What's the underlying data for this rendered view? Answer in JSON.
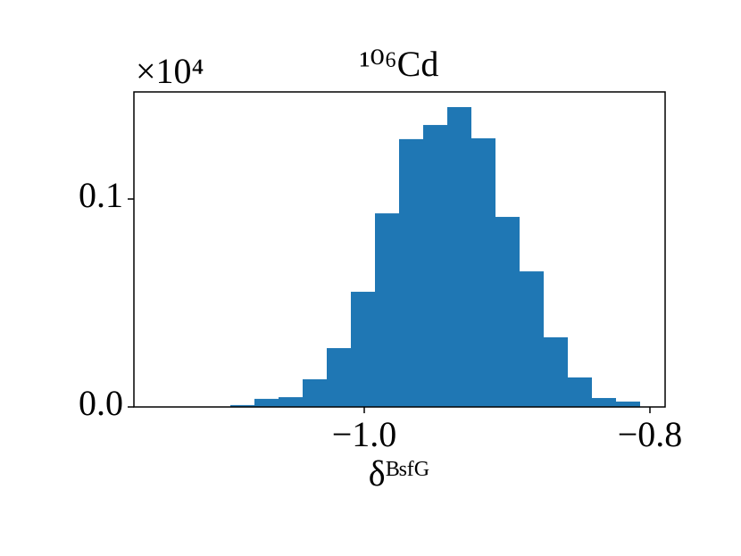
{
  "chart_data": {
    "type": "histogram",
    "title": "¹⁰⁶Cd",
    "xlabel": "δᴮˢᶠᴳ",
    "y_offset_label": "×10⁴",
    "bins": [
      -1.09375,
      -1.076875,
      -1.06,
      -1.043125,
      -1.02625,
      -1.009375,
      -0.9925,
      -0.975625,
      -0.95875,
      -0.941875,
      -0.925,
      -0.908125,
      -0.89125,
      -0.874375,
      -0.8575,
      -0.840625,
      -0.82375,
      -0.806875
    ],
    "counts": [
      0.0009,
      0.0039,
      0.0047,
      0.0133,
      0.0283,
      0.0554,
      0.0931,
      0.1288,
      0.1356,
      0.1442,
      0.1292,
      0.0914,
      0.0652,
      0.0335,
      0.0142,
      0.0043,
      0.0026
    ],
    "color": "#1f77b4",
    "xlim": [
      -1.16125,
      -0.789375
    ],
    "xticks": [
      {
        "value": -1,
        "label": "−1.0"
      },
      {
        "value": -0.8,
        "label": "−0.8"
      }
    ],
    "ylim": [
      0,
      0.1515
    ],
    "yticks": [
      {
        "value": 0,
        "label": "0.0"
      },
      0.1
    ],
    "grid": false
  }
}
